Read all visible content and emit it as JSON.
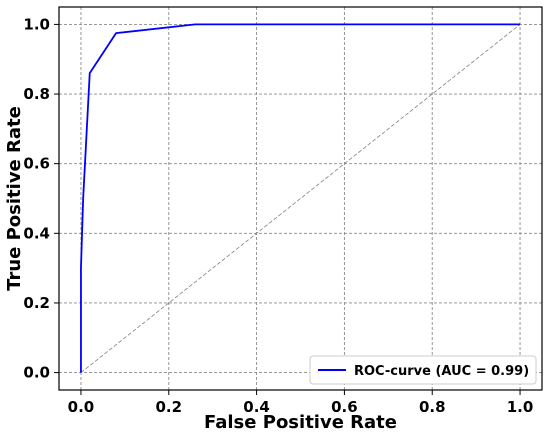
{
  "chart_data": {
    "type": "line",
    "title": "",
    "xlabel": "False Positive Rate",
    "ylabel": "True Positive Rate",
    "xlim": [
      -0.05,
      1.05
    ],
    "ylim": [
      -0.05,
      1.05
    ],
    "xticks": [
      0.0,
      0.2,
      0.4,
      0.6,
      0.8,
      1.0
    ],
    "xtick_labels": [
      "0.0",
      "0.2",
      "0.4",
      "0.6",
      "0.8",
      "1.0"
    ],
    "yticks": [
      0.0,
      0.2,
      0.4,
      0.6,
      0.8,
      1.0
    ],
    "ytick_labels": [
      "0.0",
      "0.2",
      "0.4",
      "0.6",
      "0.8",
      "1.0"
    ],
    "grid": true,
    "legend_position": "lower-right",
    "series": [
      {
        "name": "ROC-curve (AUC = 0.99)",
        "color": "#0000ff",
        "style": "solid",
        "x": [
          0.0,
          0.0,
          0.005,
          0.02,
          0.08,
          0.26,
          1.0
        ],
        "y": [
          0.0,
          0.3,
          0.5,
          0.86,
          0.975,
          1.0,
          1.0
        ]
      },
      {
        "color": "#808080",
        "style": "dashed",
        "x": [
          0.0,
          1.0
        ],
        "y": [
          0.0,
          1.0
        ]
      }
    ]
  }
}
